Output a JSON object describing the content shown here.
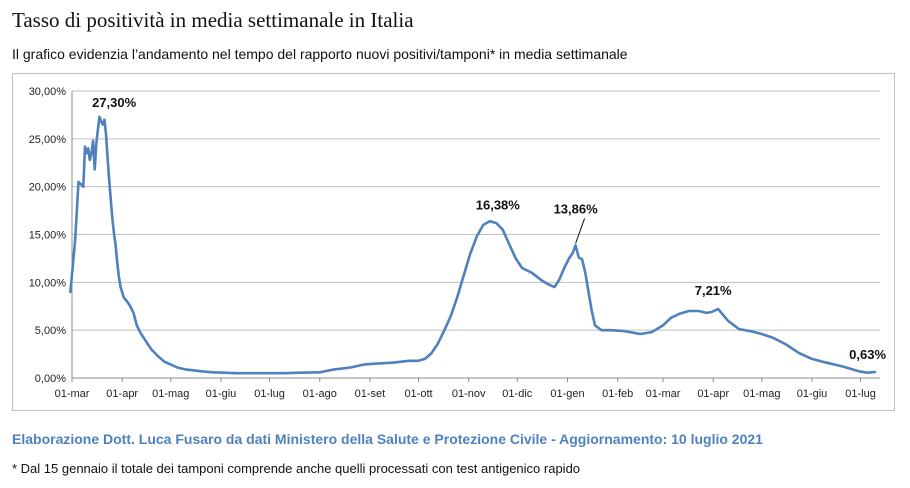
{
  "title": "Tasso di positività in media settimanale in Italia",
  "subtitle": "Il grafico evidenzia l’andamento nel tempo del rapporto nuovi positivi/tamponi* in media settimanale",
  "source": "Elaborazione Dott. Luca Fusaro da dati Ministero della Salute e Protezione Civile - Aggiornamento: 10 luglio 2021",
  "footnote": "* Dal 15 gennaio il totale dei tamponi comprende anche quelli processati con test antigenico rapido",
  "colors": {
    "line": "#4f81bd",
    "grid": "#bfbfbf",
    "source": "#4f81bd"
  },
  "chart_data": {
    "type": "line",
    "title": "",
    "xlabel": "",
    "ylabel": "",
    "ylim": [
      0,
      30
    ],
    "grid": true,
    "y_ticks": [
      "0,00%",
      "5,00%",
      "10,00%",
      "15,00%",
      "20,00%",
      "25,00%",
      "30,00%"
    ],
    "x_ticks": [
      "01-mar",
      "01-apr",
      "01-mag",
      "01-giu",
      "01-lug",
      "01-ago",
      "01-set",
      "01-ott",
      "01-nov",
      "01-dic",
      "01-gen",
      "01-feb",
      "01-mar",
      "01-apr",
      "01-mag",
      "01-giu",
      "01-lug"
    ],
    "annotations": [
      {
        "label": "27,30%",
        "x": "2020-03-27",
        "y": 27.3
      },
      {
        "label": "16,38%",
        "x": "2020-11-14",
        "y": 16.38
      },
      {
        "label": "13,86%",
        "x": "2021-01-06",
        "y": 13.86
      },
      {
        "label": "7,21%",
        "x": "2021-03-28",
        "y": 7.21
      },
      {
        "label": "0,63%",
        "x": "2021-07-10",
        "y": 0.63
      }
    ],
    "series": [
      {
        "x": [
          "2020-02-29",
          "2020-03-03",
          "2020-03-05",
          "2020-03-08",
          "2020-03-09",
          "2020-03-10",
          "2020-03-11",
          "2020-03-12",
          "2020-03-13",
          "2020-03-14",
          "2020-03-15",
          "2020-03-16",
          "2020-03-17",
          "2020-03-18",
          "2020-03-19",
          "2020-03-20",
          "2020-03-21",
          "2020-03-22",
          "2020-03-23",
          "2020-03-24",
          "2020-03-25",
          "2020-03-26",
          "2020-03-27",
          "2020-03-28",
          "2020-03-29",
          "2020-03-30",
          "2020-03-31",
          "2020-04-02",
          "2020-04-04",
          "2020-04-06",
          "2020-04-08",
          "2020-04-10",
          "2020-04-12",
          "2020-04-15",
          "2020-04-19",
          "2020-04-23",
          "2020-04-27",
          "2020-05-01",
          "2020-05-05",
          "2020-05-10",
          "2020-05-15",
          "2020-05-20",
          "2020-05-27",
          "2020-06-03",
          "2020-06-10",
          "2020-06-20",
          "2020-07-01",
          "2020-07-10",
          "2020-07-20",
          "2020-08-01",
          "2020-08-10",
          "2020-08-20",
          "2020-08-28",
          "2020-09-05",
          "2020-09-15",
          "2020-09-25",
          "2020-10-01",
          "2020-10-05",
          "2020-10-09",
          "2020-10-13",
          "2020-10-17",
          "2020-10-21",
          "2020-10-25",
          "2020-10-29",
          "2020-11-02",
          "2020-11-06",
          "2020-11-10",
          "2020-11-14",
          "2020-11-18",
          "2020-11-22",
          "2020-11-26",
          "2020-11-30",
          "2020-12-04",
          "2020-12-10",
          "2020-12-16",
          "2020-12-20",
          "2020-12-24",
          "2020-12-27",
          "2020-12-30",
          "2021-01-02",
          "2021-01-04",
          "2021-01-06",
          "2021-01-08",
          "2021-01-10",
          "2021-01-12",
          "2021-01-14",
          "2021-01-16",
          "2021-01-18",
          "2021-01-22",
          "2021-01-28",
          "2021-02-05",
          "2021-02-15",
          "2021-02-22",
          "2021-03-01",
          "2021-03-06",
          "2021-03-11",
          "2021-03-17",
          "2021-03-23",
          "2021-03-28",
          "2021-03-31",
          "2021-04-04",
          "2021-04-10",
          "2021-04-17",
          "2021-04-24",
          "2021-05-01",
          "2021-05-08",
          "2021-05-16",
          "2021-05-24",
          "2021-06-01",
          "2021-06-10",
          "2021-06-20",
          "2021-06-30",
          "2021-07-05",
          "2021-07-10"
        ],
        "y": [
          9.0,
          14.5,
          20.5,
          20.0,
          24.2,
          23.5,
          24.0,
          22.8,
          23.5,
          24.8,
          21.8,
          24.5,
          26.0,
          27.3,
          26.8,
          26.5,
          27.0,
          25.5,
          23.0,
          20.7,
          18.5,
          16.5,
          15.0,
          13.8,
          12.0,
          10.5,
          9.5,
          8.4,
          8.0,
          7.5,
          6.8,
          5.5,
          4.8,
          4.0,
          3.0,
          2.3,
          1.7,
          1.4,
          1.1,
          0.9,
          0.8,
          0.7,
          0.6,
          0.55,
          0.5,
          0.5,
          0.5,
          0.5,
          0.55,
          0.6,
          0.9,
          1.1,
          1.4,
          1.5,
          1.6,
          1.8,
          1.8,
          2.0,
          2.6,
          3.6,
          5.0,
          6.5,
          8.5,
          10.8,
          13.0,
          14.8,
          16.0,
          16.38,
          16.2,
          15.5,
          14.0,
          12.5,
          11.5,
          11.0,
          10.2,
          9.8,
          9.5,
          10.3,
          11.5,
          12.5,
          13.0,
          13.86,
          12.6,
          12.4,
          11.0,
          9.0,
          7.0,
          5.5,
          5.0,
          5.0,
          4.9,
          4.6,
          4.8,
          5.5,
          6.3,
          6.7,
          7.0,
          7.0,
          6.8,
          6.9,
          7.21,
          6.0,
          5.1,
          4.9,
          4.6,
          4.2,
          3.5,
          2.6,
          2.0,
          1.6,
          1.2,
          0.7,
          0.55,
          0.63
        ]
      }
    ]
  }
}
